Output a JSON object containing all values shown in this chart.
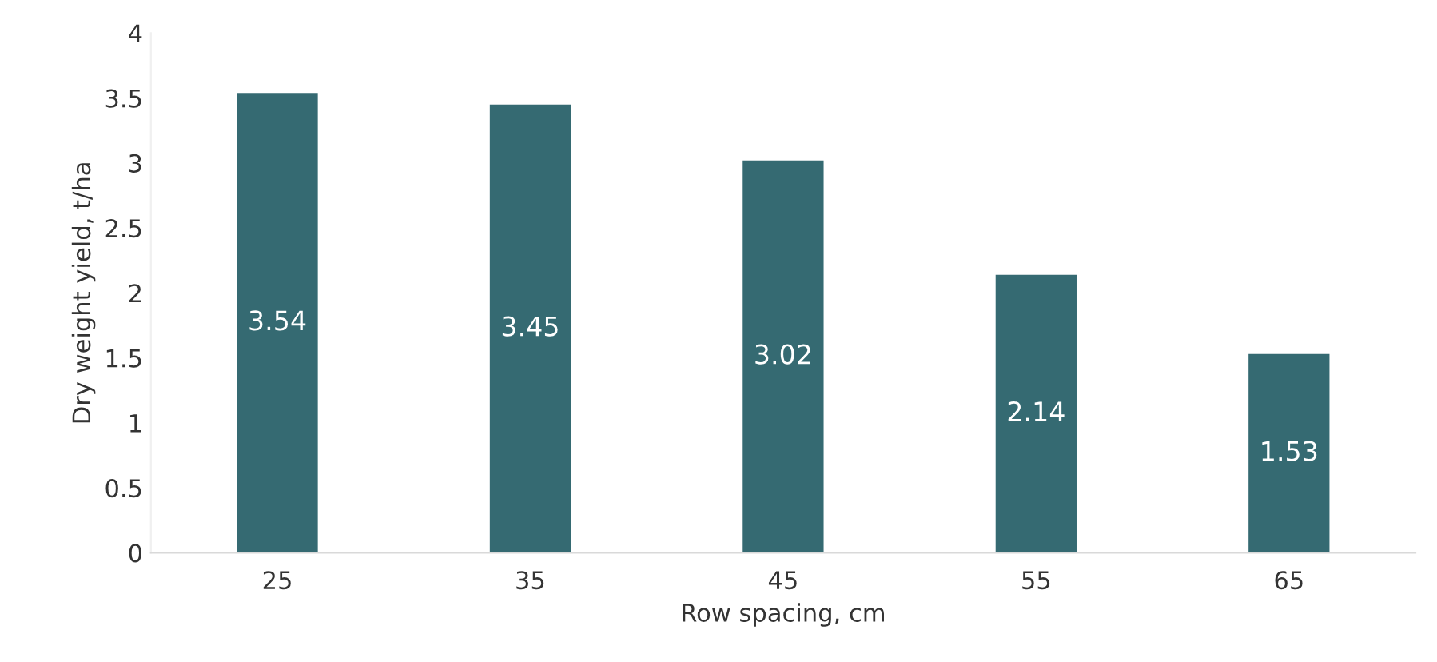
{
  "chart_data": {
    "type": "bar",
    "xlabel": "Row spacing, cm",
    "ylabel": "Dry weight yield, t/ha",
    "categories": [
      "25",
      "35",
      "45",
      "55",
      "65"
    ],
    "values": [
      3.54,
      3.45,
      3.02,
      2.14,
      1.53
    ],
    "color": "#356a72",
    "ylim": [
      0,
      4
    ],
    "yticks": [
      0,
      {
        "value": 0.5,
        "label": "0.5"
      },
      1,
      {
        "value": 1.5,
        "label": "1.5"
      },
      2,
      {
        "value": 2.5,
        "label": "2.5"
      },
      3,
      {
        "value": 3.5,
        "label": "3.5"
      },
      4
    ],
    "grid": false,
    "data_labels": true
  }
}
